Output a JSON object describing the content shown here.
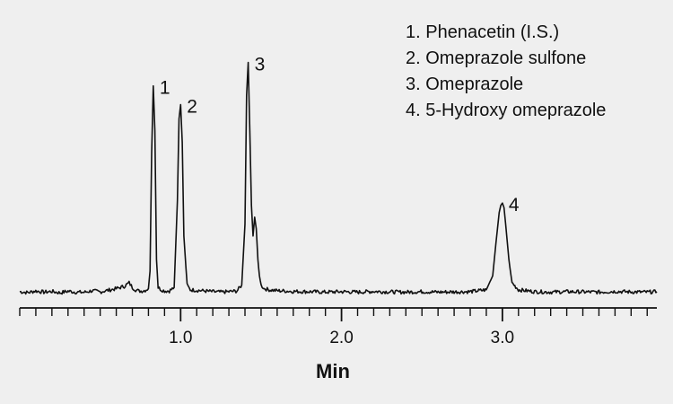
{
  "chart_data": {
    "type": "line",
    "title": "",
    "xlabel": "Min",
    "ylabel": "",
    "xlim": [
      0.0,
      3.96
    ],
    "ylim": [
      0,
      100
    ],
    "grid": false,
    "legend_placement": "top-right",
    "x_ticks": [
      {
        "value": 1.0,
        "label": "1.0"
      },
      {
        "value": 2.0,
        "label": "2.0"
      },
      {
        "value": 3.0,
        "label": "3.0"
      }
    ],
    "minor_tick_step": 0.1,
    "legend": [
      "1. Phenacetin (I.S.)",
      "2. Omeprazole sulfone",
      "3. Omeprazole",
      "4. 5-Hydroxy omeprazole"
    ],
    "peaks": [
      {
        "label": "1",
        "x": 0.83,
        "y": 89
      },
      {
        "label": "2",
        "x": 1.0,
        "y": 81
      },
      {
        "label": "3",
        "x": 1.42,
        "y": 99
      },
      {
        "label": "4",
        "x": 3.0,
        "y": 39
      }
    ],
    "series": [
      {
        "x": [
          0.0,
          0.05,
          0.1,
          0.15,
          0.2,
          0.25,
          0.3,
          0.35,
          0.4,
          0.45,
          0.5,
          0.55,
          0.6,
          0.65,
          0.68,
          0.7,
          0.72,
          0.74,
          0.76,
          0.78,
          0.8,
          0.81,
          0.82,
          0.83,
          0.84,
          0.85,
          0.86,
          0.88,
          0.9,
          0.93,
          0.96,
          0.98,
          0.99,
          1.0,
          1.01,
          1.02,
          1.04,
          1.06,
          1.1,
          1.15,
          1.2,
          1.25,
          1.3,
          1.35,
          1.38,
          1.4,
          1.41,
          1.42,
          1.43,
          1.44,
          1.45,
          1.46,
          1.47,
          1.48,
          1.49,
          1.5,
          1.52,
          1.55,
          1.6,
          1.65,
          1.7,
          1.8,
          1.9,
          2.0,
          2.1,
          2.2,
          2.3,
          2.4,
          2.5,
          2.6,
          2.7,
          2.8,
          2.9,
          2.94,
          2.96,
          2.98,
          2.99,
          3.0,
          3.01,
          3.02,
          3.04,
          3.06,
          3.1,
          3.2,
          3.3,
          3.4,
          3.5,
          3.6,
          3.7,
          3.8,
          3.9,
          3.96
        ],
        "y": [
          1.2,
          0.8,
          1.5,
          1.0,
          1.3,
          0.7,
          1.4,
          1.0,
          0.9,
          1.6,
          1.1,
          1.8,
          2.5,
          3.5,
          5.0,
          3.0,
          2.0,
          1.5,
          1.5,
          1.8,
          2.5,
          10,
          60,
          89,
          70,
          15,
          3,
          2,
          1.5,
          1.5,
          3,
          40,
          75,
          81,
          65,
          25,
          4,
          2,
          1.8,
          1.5,
          1.2,
          1.0,
          1.2,
          1.5,
          4,
          30,
          85,
          99,
          70,
          38,
          25,
          33,
          28,
          15,
          8,
          4,
          2.5,
          2.0,
          1.6,
          1.5,
          1.3,
          1.2,
          1.0,
          1.2,
          1.0,
          1.3,
          1.1,
          1.0,
          1.2,
          1.0,
          1.1,
          1.2,
          2,
          8,
          22,
          35,
          38,
          39,
          37,
          30,
          15,
          5,
          2,
          1.2,
          1.0,
          1.2,
          1.1,
          1.0,
          1.3,
          1.1,
          1.0,
          1.2
        ]
      }
    ]
  }
}
